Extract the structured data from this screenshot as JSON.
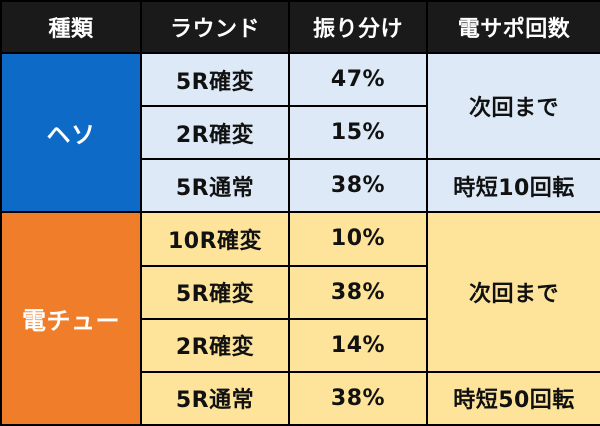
{
  "headers": [
    "種類",
    "ラウンド",
    "振り分け",
    "電サポ回数"
  ],
  "heso": {
    "type": "ヘソ",
    "rows": [
      {
        "round": "5R確変",
        "share": "47%"
      },
      {
        "round": "2R確変",
        "share": "15%"
      },
      {
        "round": "5R通常",
        "share": "38%"
      }
    ],
    "support_kakuhen": "次回まで",
    "support_tsujo": "時短10回転"
  },
  "den": {
    "type": "電チュー",
    "rows": [
      {
        "round": "10R確変",
        "share": "10%"
      },
      {
        "round": "5R確変",
        "share": "38%"
      },
      {
        "round": "2R確変",
        "share": "14%"
      },
      {
        "round": "5R通常",
        "share": "38%"
      }
    ],
    "support_kakuhen": "次回まで",
    "support_tsujo": "時短50回転"
  },
  "colors": {
    "header_bg": "#1a1a1a",
    "heso_type_bg": "#0d6ac6",
    "den_type_bg": "#ef7d2a",
    "heso_cell_bg": "#dde9f7",
    "den_cell_bg": "#fde49a"
  }
}
